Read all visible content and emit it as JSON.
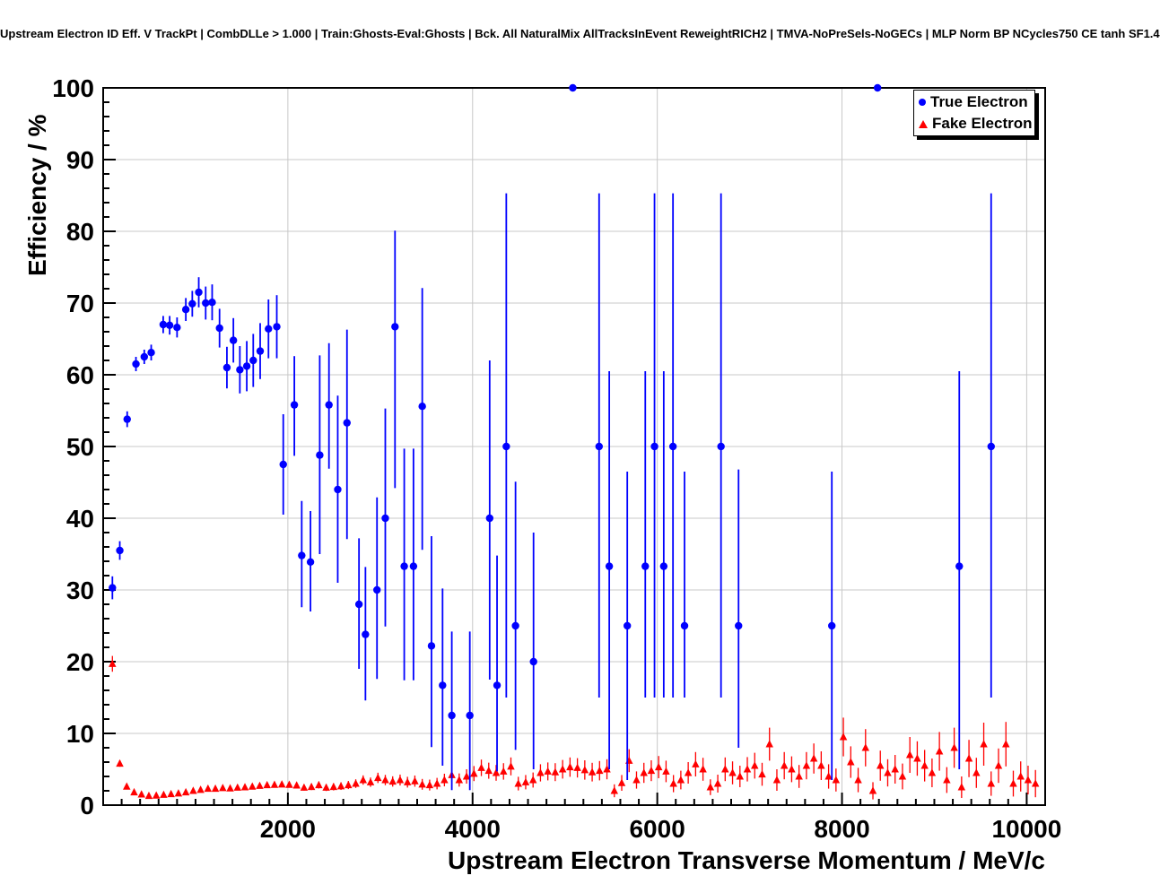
{
  "chart_data": {
    "type": "scatter",
    "title": "Upstream Electron ID Eff. V TrackPt | CombDLLe > 1.000 | Train:Ghosts-Eval:Ghosts | Bck. All NaturalMix AllTracksInEvent ReweightRICH2 | TMVA-NoPreSels-NoGECs | MLP Norm BP NCycles750 CE tanh SF1.4",
    "xlabel": "Upstream Electron Transverse Momentum / MeV/c",
    "ylabel": "Efficiency / %",
    "xlim": [
      0,
      10200
    ],
    "ylim": [
      0,
      100
    ],
    "x_ticks": [
      2000,
      4000,
      6000,
      8000,
      10000
    ],
    "y_ticks": [
      0,
      10,
      20,
      30,
      40,
      50,
      60,
      70,
      80,
      90,
      100
    ],
    "x_major_step": 2000,
    "x_minor_step": 200,
    "y_major_step": 10,
    "y_minor_step": 2,
    "grid": true,
    "grid_color": "#c8c8c8",
    "frame_color": "#000000",
    "background": "#ffffff",
    "legend_position": "top-right",
    "series": [
      {
        "name": "True Electron",
        "color": "#0000ff",
        "marker": "circle",
        "marker_size": 4.2,
        "line_width": 1.8,
        "points": [
          [
            100,
            30.3,
            1.6,
            1.6
          ],
          [
            180,
            35.5,
            1.3,
            1.3
          ],
          [
            260,
            53.8,
            1.1,
            1.1
          ],
          [
            355,
            61.5,
            1.0,
            1.0
          ],
          [
            445,
            62.5,
            1.0,
            1.0
          ],
          [
            520,
            63.1,
            1.1,
            1.1
          ],
          [
            650,
            67.0,
            1.2,
            1.2
          ],
          [
            720,
            66.9,
            1.3,
            1.3
          ],
          [
            800,
            66.6,
            1.4,
            1.4
          ],
          [
            895,
            69.1,
            1.6,
            1.6
          ],
          [
            965,
            69.9,
            1.8,
            1.8
          ],
          [
            1035,
            71.5,
            2.1,
            2.1
          ],
          [
            1110,
            70.0,
            2.3,
            2.3
          ],
          [
            1180,
            70.1,
            2.5,
            2.5
          ],
          [
            1260,
            66.5,
            2.7,
            2.7
          ],
          [
            1340,
            61.0,
            2.9,
            2.9
          ],
          [
            1410,
            64.8,
            3.1,
            3.1
          ],
          [
            1480,
            60.7,
            3.3,
            3.3
          ],
          [
            1555,
            61.2,
            3.5,
            3.5
          ],
          [
            1625,
            62.0,
            3.7,
            3.7
          ],
          [
            1700,
            63.3,
            3.9,
            3.9
          ],
          [
            1790,
            66.4,
            4.1,
            4.1
          ],
          [
            1880,
            66.7,
            4.4,
            4.4
          ],
          [
            1950,
            47.5,
            7.0,
            7.0
          ],
          [
            2070,
            55.8,
            7.1,
            6.8
          ],
          [
            2150,
            34.8,
            7.2,
            7.6
          ],
          [
            2245,
            33.9,
            6.9,
            7.1
          ],
          [
            2345,
            48.8,
            13.8,
            13.9
          ],
          [
            2445,
            55.8,
            8.9,
            8.6
          ],
          [
            2540,
            44.0,
            13.0,
            13.1
          ],
          [
            2640,
            53.3,
            16.2,
            13.0
          ],
          [
            2770,
            28.0,
            9.0,
            9.2
          ],
          [
            2840,
            23.8,
            9.2,
            9.4
          ],
          [
            2965,
            30.0,
            12.4,
            12.9
          ],
          [
            3055,
            40.0,
            15.1,
            15.3
          ],
          [
            3160,
            66.7,
            22.5,
            13.4
          ],
          [
            3260,
            33.3,
            15.9,
            16.4
          ],
          [
            3360,
            33.3,
            15.9,
            16.4
          ],
          [
            3455,
            55.6,
            20.0,
            16.5
          ],
          [
            3555,
            22.2,
            14.1,
            15.3
          ],
          [
            3675,
            16.7,
            11.2,
            13.5
          ],
          [
            3775,
            12.5,
            10.4,
            11.7
          ],
          [
            3970,
            12.5,
            10.4,
            11.7
          ],
          [
            4185,
            40.0,
            22.5,
            22.0
          ],
          [
            4265,
            16.7,
            12.0,
            18.1
          ],
          [
            4365,
            50.0,
            35.0,
            35.3
          ],
          [
            4465,
            25.0,
            17.3,
            20.1
          ],
          [
            4660,
            20.0,
            15.0,
            18.0
          ],
          [
            5085,
            100.0,
            0,
            0
          ],
          [
            5370,
            50.0,
            35.0,
            35.3
          ],
          [
            5480,
            33.3,
            28.3,
            27.2
          ],
          [
            5675,
            25.0,
            21.5,
            21.5
          ],
          [
            5870,
            33.3,
            18.3,
            27.2
          ],
          [
            5970,
            50.0,
            35.0,
            35.3
          ],
          [
            6070,
            33.3,
            18.3,
            27.2
          ],
          [
            6170,
            50.0,
            35.0,
            35.3
          ],
          [
            6295,
            25.0,
            10.0,
            21.5
          ],
          [
            6690,
            50.0,
            35.0,
            35.3
          ],
          [
            6880,
            25.0,
            17.0,
            21.8
          ],
          [
            7890,
            25.0,
            21.5,
            21.5
          ],
          [
            8385,
            100.0,
            0,
            0
          ],
          [
            9270,
            33.3,
            28.3,
            27.2
          ],
          [
            9615,
            50.0,
            35.0,
            35.3
          ]
        ]
      },
      {
        "name": "Fake Electron",
        "color": "#ff0000",
        "marker": "triangle",
        "marker_size": 3.5,
        "line_width": 1.3,
        "points": [
          [
            100,
            19.7,
            1.1
          ],
          [
            180,
            5.8,
            0.45
          ],
          [
            255,
            2.6,
            0.25
          ],
          [
            335,
            1.8,
            0.18
          ],
          [
            415,
            1.5,
            0.15
          ],
          [
            495,
            1.3,
            0.13
          ],
          [
            575,
            1.35,
            0.13
          ],
          [
            655,
            1.45,
            0.14
          ],
          [
            735,
            1.55,
            0.15
          ],
          [
            815,
            1.65,
            0.16
          ],
          [
            895,
            1.8,
            0.18
          ],
          [
            975,
            2.0,
            0.2
          ],
          [
            1055,
            2.15,
            0.22
          ],
          [
            1135,
            2.3,
            0.24
          ],
          [
            1215,
            2.3,
            0.25
          ],
          [
            1295,
            2.4,
            0.26
          ],
          [
            1375,
            2.35,
            0.27
          ],
          [
            1455,
            2.45,
            0.28
          ],
          [
            1535,
            2.5,
            0.3
          ],
          [
            1615,
            2.6,
            0.31
          ],
          [
            1695,
            2.7,
            0.33
          ],
          [
            1775,
            2.8,
            0.35
          ],
          [
            1855,
            2.85,
            0.37
          ],
          [
            1935,
            2.9,
            0.39
          ],
          [
            2015,
            2.85,
            0.4
          ],
          [
            2095,
            2.75,
            0.42
          ],
          [
            2175,
            2.45,
            0.42
          ],
          [
            2255,
            2.55,
            0.45
          ],
          [
            2335,
            2.8,
            0.48
          ],
          [
            2415,
            2.45,
            0.48
          ],
          [
            2495,
            2.55,
            0.5
          ],
          [
            2575,
            2.65,
            0.53
          ],
          [
            2655,
            2.8,
            0.56
          ],
          [
            2735,
            3.0,
            0.6
          ],
          [
            2815,
            3.5,
            0.65
          ],
          [
            2895,
            3.2,
            0.65
          ],
          [
            2975,
            3.8,
            0.72
          ],
          [
            3055,
            3.5,
            0.72
          ],
          [
            3135,
            3.3,
            0.72
          ],
          [
            3215,
            3.5,
            0.76
          ],
          [
            3295,
            3.2,
            0.75
          ],
          [
            3375,
            3.35,
            0.78
          ],
          [
            3455,
            2.9,
            0.75
          ],
          [
            3535,
            2.8,
            0.76
          ],
          [
            3615,
            3.0,
            0.8
          ],
          [
            3695,
            3.5,
            0.88
          ],
          [
            3775,
            4.2,
            0.98
          ],
          [
            3855,
            3.5,
            0.92
          ],
          [
            3935,
            4.0,
            1.0
          ],
          [
            4015,
            4.4,
            1.05
          ],
          [
            4095,
            5.2,
            1.15
          ],
          [
            4175,
            4.8,
            1.12
          ],
          [
            4255,
            4.5,
            1.1
          ],
          [
            4335,
            4.7,
            1.15
          ],
          [
            4415,
            5.4,
            1.25
          ],
          [
            4495,
            3.0,
            0.95
          ],
          [
            4575,
            3.2,
            1.0
          ],
          [
            4655,
            3.5,
            1.05
          ],
          [
            4735,
            4.5,
            1.2
          ],
          [
            4815,
            4.7,
            1.25
          ],
          [
            4895,
            4.6,
            1.25
          ],
          [
            4975,
            5.0,
            1.3
          ],
          [
            5055,
            5.3,
            1.35
          ],
          [
            5135,
            5.2,
            1.35
          ],
          [
            5215,
            4.9,
            1.35
          ],
          [
            5295,
            4.6,
            1.3
          ],
          [
            5375,
            4.8,
            1.35
          ],
          [
            5455,
            5.0,
            1.4
          ],
          [
            5535,
            2.0,
            0.9
          ],
          [
            5615,
            3.1,
            1.1
          ],
          [
            5695,
            6.2,
            1.6
          ],
          [
            5775,
            3.5,
            1.2
          ],
          [
            5855,
            4.5,
            1.4
          ],
          [
            5935,
            4.8,
            1.45
          ],
          [
            6015,
            5.3,
            1.55
          ],
          [
            6095,
            4.7,
            1.5
          ],
          [
            6175,
            3.0,
            1.2
          ],
          [
            6255,
            3.5,
            1.3
          ],
          [
            6335,
            4.5,
            1.5
          ],
          [
            6415,
            5.7,
            1.7
          ],
          [
            6495,
            5.0,
            1.6
          ],
          [
            6575,
            2.5,
            1.1
          ],
          [
            6655,
            3.0,
            1.25
          ],
          [
            6735,
            5.0,
            1.65
          ],
          [
            6815,
            4.5,
            1.6
          ],
          [
            6895,
            4.0,
            1.5
          ],
          [
            6975,
            5.0,
            1.7
          ],
          [
            7055,
            5.5,
            1.8
          ],
          [
            7135,
            4.3,
            1.6
          ],
          [
            7215,
            8.5,
            2.3
          ],
          [
            7295,
            3.5,
            1.5
          ],
          [
            7375,
            5.5,
            1.9
          ],
          [
            7455,
            5.0,
            1.8
          ],
          [
            7535,
            4.0,
            1.6
          ],
          [
            7615,
            5.5,
            1.9
          ],
          [
            7695,
            6.5,
            2.1
          ],
          [
            7775,
            5.5,
            2.0
          ],
          [
            7855,
            4.0,
            1.7
          ],
          [
            7935,
            3.5,
            1.6
          ],
          [
            8015,
            9.5,
            2.7
          ],
          [
            8095,
            6.0,
            2.2
          ],
          [
            8175,
            3.5,
            1.7
          ],
          [
            8255,
            8.0,
            2.6
          ],
          [
            8335,
            2.0,
            1.2
          ],
          [
            8415,
            5.5,
            2.1
          ],
          [
            8495,
            4.5,
            1.9
          ],
          [
            8575,
            5.0,
            2.0
          ],
          [
            8655,
            4.0,
            1.8
          ],
          [
            8735,
            7.0,
            2.5
          ],
          [
            8815,
            6.5,
            2.4
          ],
          [
            8895,
            5.5,
            2.2
          ],
          [
            8975,
            4.5,
            2.0
          ],
          [
            9055,
            7.5,
            2.7
          ],
          [
            9135,
            3.5,
            1.8
          ],
          [
            9215,
            8.0,
            2.8
          ],
          [
            9295,
            2.5,
            1.5
          ],
          [
            9375,
            6.5,
            2.6
          ],
          [
            9455,
            4.5,
            2.1
          ],
          [
            9535,
            8.5,
            3.0
          ],
          [
            9615,
            3.0,
            1.7
          ],
          [
            9695,
            5.5,
            2.4
          ],
          [
            9775,
            8.5,
            3.1
          ],
          [
            9855,
            3.0,
            1.8
          ],
          [
            9935,
            4.0,
            2.1
          ],
          [
            10015,
            3.5,
            2.0
          ],
          [
            10095,
            3.0,
            1.9
          ]
        ]
      }
    ]
  }
}
